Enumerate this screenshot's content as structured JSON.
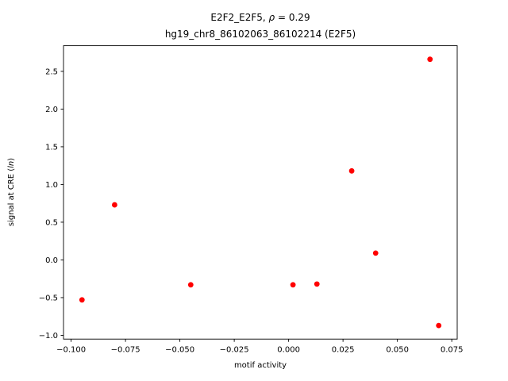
{
  "chart_data": {
    "type": "scatter",
    "title": "E2F2_E2F5, ρ = 0.29",
    "title_parts": {
      "prefix": "E2F2_E2F5, ",
      "italic": "ρ",
      "suffix": " = 0.29"
    },
    "subtitle": "hg19_chr8_86102063_86102214 (E2F5)",
    "xlabel": "motif activity",
    "ylabel": "signal at CRE (ln)",
    "ylabel_parts": {
      "prefix": "signal at CRE (",
      "italic": "ln",
      "suffix": ")"
    },
    "marker_color": "#ff0000",
    "marker_shape": "circle",
    "grid": false,
    "legend": null,
    "xlim": [
      -0.1035,
      0.0775
    ],
    "ylim": [
      -1.05,
      2.84
    ],
    "xticks": {
      "values": [
        -0.1,
        -0.075,
        -0.05,
        -0.025,
        0.0,
        0.025,
        0.05,
        0.075
      ],
      "labels": [
        "−0.100",
        "−0.075",
        "−0.050",
        "−0.025",
        "0.000",
        "0.025",
        "0.050",
        "0.075"
      ]
    },
    "yticks": {
      "values": [
        -1.0,
        -0.5,
        0.0,
        0.5,
        1.0,
        1.5,
        2.0,
        2.5
      ],
      "labels": [
        "−1.0",
        "−0.5",
        "0.0",
        "0.5",
        "1.0",
        "1.5",
        "2.0",
        "2.5"
      ]
    },
    "points": [
      {
        "x": -0.095,
        "y": -0.53
      },
      {
        "x": -0.08,
        "y": 0.73
      },
      {
        "x": -0.045,
        "y": -0.33
      },
      {
        "x": 0.002,
        "y": -0.33
      },
      {
        "x": 0.013,
        "y": -0.32
      },
      {
        "x": 0.029,
        "y": 1.18
      },
      {
        "x": 0.04,
        "y": 0.09
      },
      {
        "x": 0.065,
        "y": 2.66
      },
      {
        "x": 0.069,
        "y": -0.87
      }
    ]
  }
}
